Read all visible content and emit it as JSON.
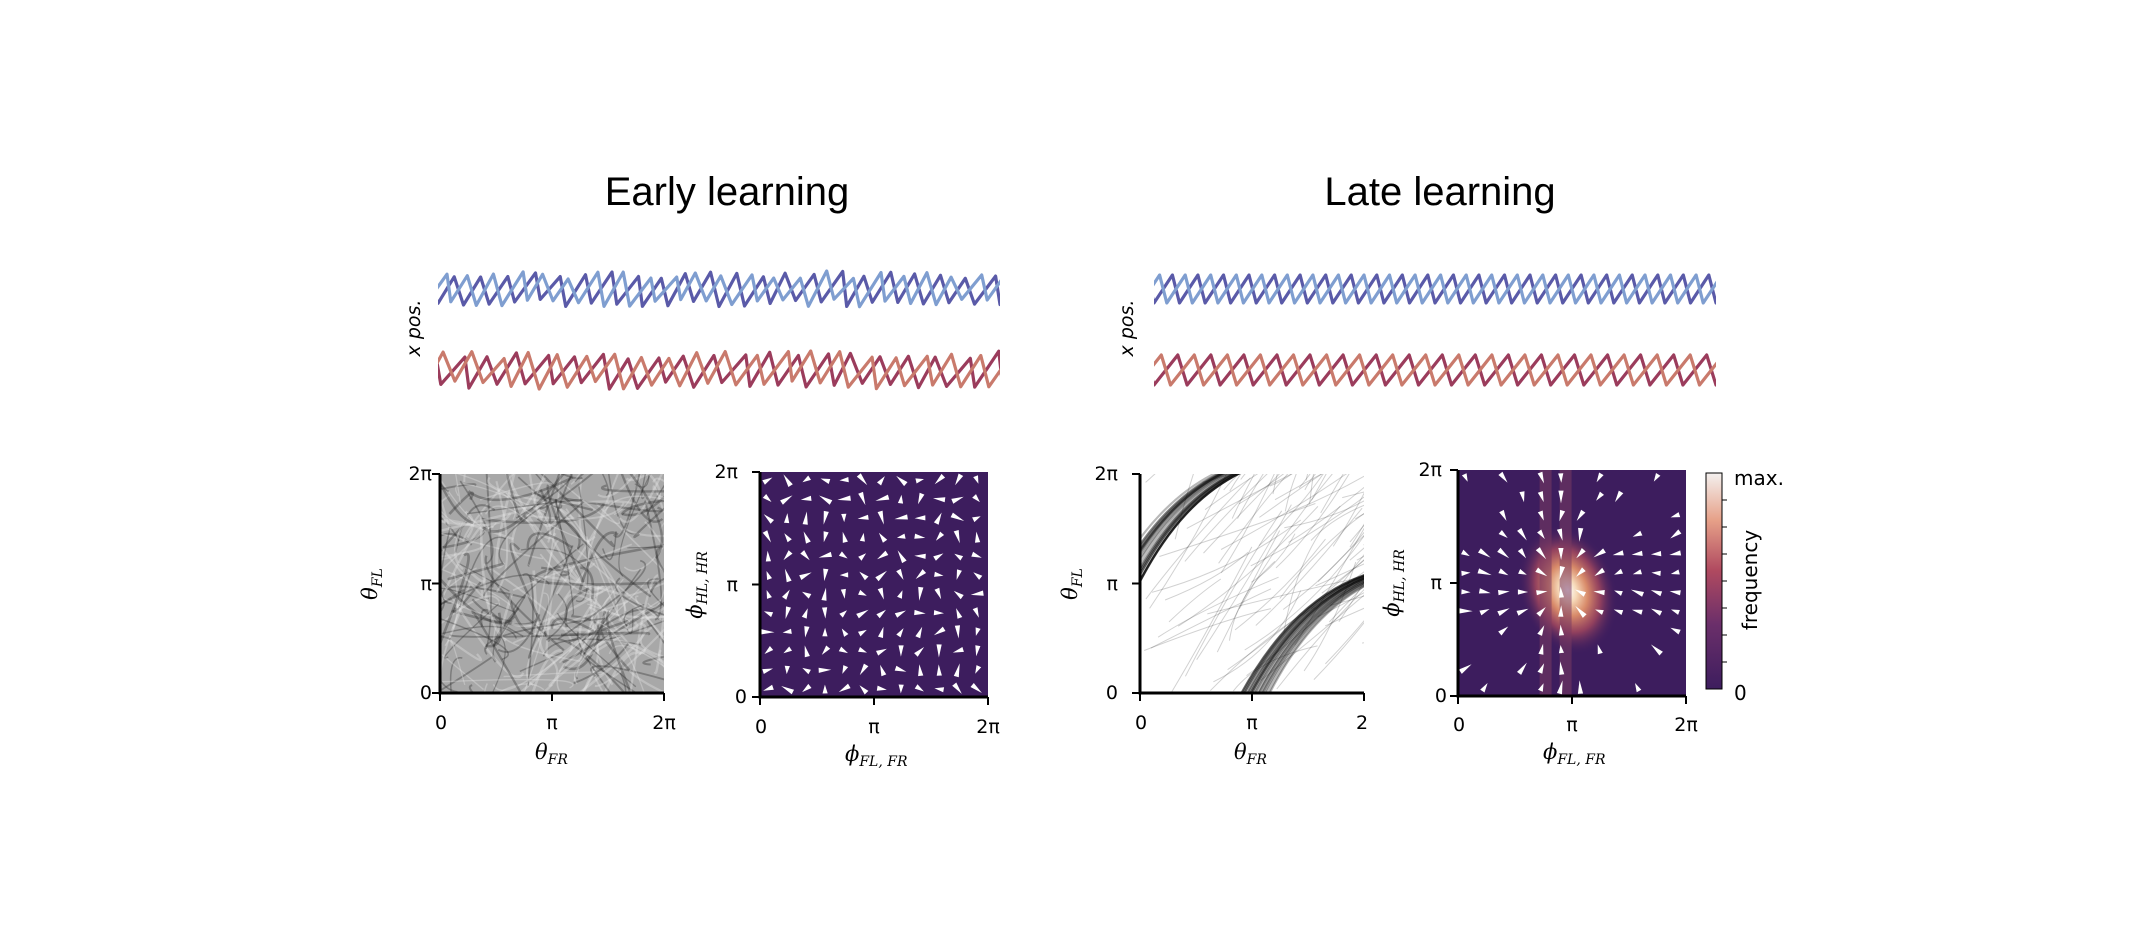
{
  "panels": {
    "early": {
      "title": "Early learning"
    },
    "late": {
      "title": "Late learning"
    }
  },
  "trace_ylabel": "x pos.",
  "ticks": {
    "zero": "0",
    "pi": "π",
    "two_pi": "2π",
    "two_pi_clipped": "2"
  },
  "axis_labels": {
    "theta_fl": "θ",
    "theta_fl_sub": "FL",
    "theta_fr": "θ",
    "theta_fr_sub": "FR",
    "phi_hl_hr": "ϕ",
    "phi_hl_hr_sub": "HL, HR",
    "phi_fl_fr": "ϕ",
    "phi_fl_fr_sub": "FL, FR"
  },
  "colorbar": {
    "top_label": "max.",
    "bottom_label": "0",
    "label": "frequency"
  },
  "colors": {
    "blue_dark": "#5a5aa8",
    "blue_light": "#7f9ed0",
    "red_dark": "#9b3c5c",
    "red_light": "#c97a6c",
    "flow_bg": "#3d1d5e",
    "arrow": "#ffffff"
  },
  "chart_data": [
    {
      "type": "line",
      "name": "early-traces",
      "series": [
        {
          "group": "front",
          "color": "#5a5aa8",
          "cycles": 22,
          "phase": 0.0
        },
        {
          "group": "front",
          "color": "#7f9ed0",
          "cycles": 22,
          "phase": 0.5
        },
        {
          "group": "hind",
          "color": "#9b3c5c",
          "cycles": 20,
          "phase": 0.1
        },
        {
          "group": "hind",
          "color": "#c97a6c",
          "cycles": 20,
          "phase": 0.6
        }
      ]
    },
    {
      "type": "line",
      "name": "late-traces",
      "series": [
        {
          "group": "front",
          "color": "#5a5aa8",
          "cycles": 22,
          "phase": 0.0
        },
        {
          "group": "front",
          "color": "#7f9ed0",
          "cycles": 22,
          "phase": 0.5
        },
        {
          "group": "hind",
          "color": "#9b3c5c",
          "cycles": 17,
          "phase": 0.0
        },
        {
          "group": "hind",
          "color": "#c97a6c",
          "cycles": 17,
          "phase": 0.5
        }
      ]
    },
    {
      "type": "heatmap",
      "name": "early-phase-trajectories",
      "xlim": [
        0,
        6.283
      ],
      "ylim": [
        0,
        6.283
      ],
      "pattern": "uniform"
    },
    {
      "type": "heatmap",
      "name": "early-phase-flow",
      "xlim": [
        0,
        6.283
      ],
      "ylim": [
        0,
        6.283
      ],
      "pattern": "uniform"
    },
    {
      "type": "heatmap",
      "name": "late-phase-trajectories",
      "xlim": [
        0,
        6.283
      ],
      "ylim": [
        0,
        6.283
      ],
      "pattern": "diagonal-bands"
    },
    {
      "type": "heatmap",
      "name": "late-phase-flow",
      "xlim": [
        0,
        6.283
      ],
      "ylim": [
        0,
        6.283
      ],
      "pattern": "peak",
      "peak": [
        2.8,
        3.1
      ]
    }
  ]
}
